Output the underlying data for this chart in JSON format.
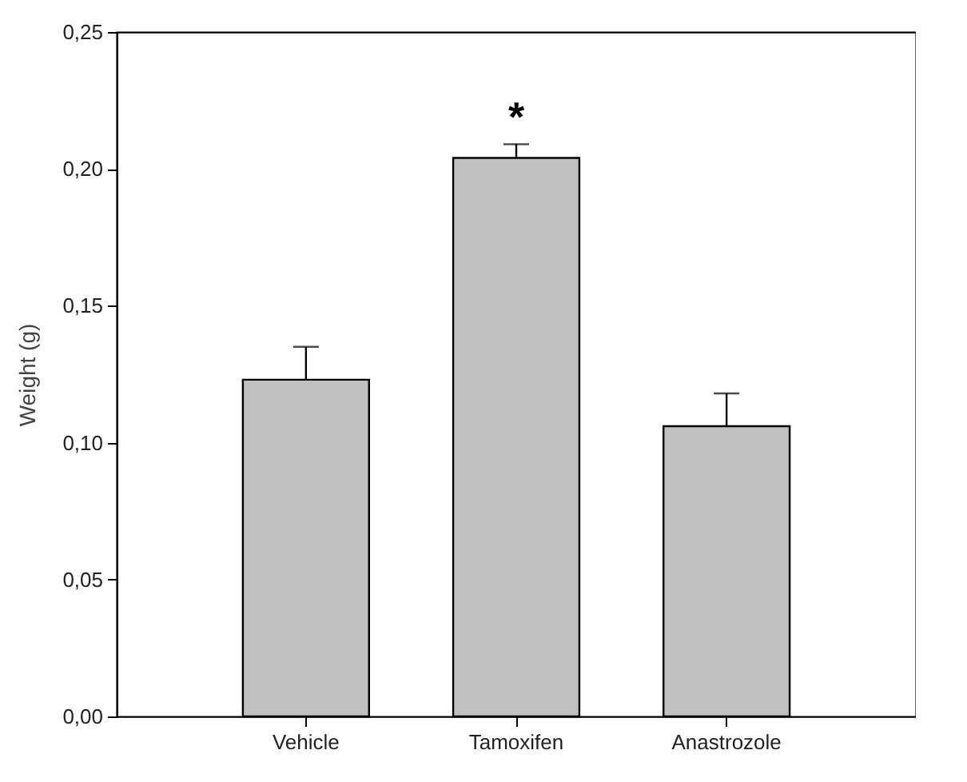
{
  "chart_data": {
    "type": "bar",
    "ylabel": "Weight (g)",
    "categories": [
      "Vehicle",
      "Tamoxifen",
      "Anastrozole"
    ],
    "values": [
      0.123,
      0.204,
      0.106
    ],
    "errors": [
      [
        0.123,
        0.135
      ],
      [
        0.204,
        0.209
      ],
      [
        0.106,
        0.118
      ]
    ],
    "color": "#c0c0c0",
    "ylim": [
      0,
      0.25
    ],
    "yticks": [
      {
        "value": 0,
        "label": "0,00"
      },
      {
        "value": 0.05,
        "label": "0,05"
      },
      {
        "value": 0.1,
        "label": "0,10"
      },
      {
        "value": 0.15,
        "label": "0,15"
      },
      {
        "value": 0.2,
        "label": "0,20"
      },
      {
        "value": 0.25,
        "label": "0,25"
      }
    ],
    "annotations": [
      "*"
    ],
    "grid": false
  }
}
